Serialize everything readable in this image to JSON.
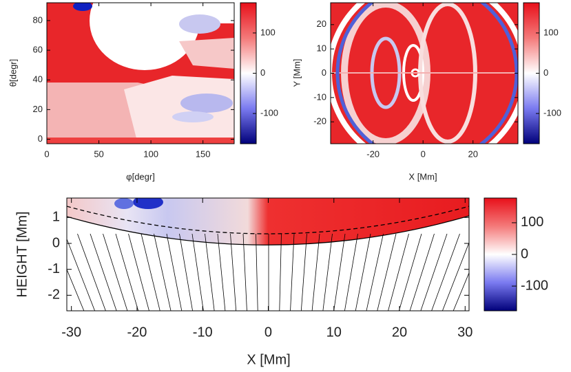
{
  "chart_data": [
    {
      "type": "heatmap",
      "xlabel": "φ[degr]",
      "ylabel": "θ[degr]",
      "xlim": [
        0,
        180
      ],
      "xticks": [
        0,
        50,
        100,
        150
      ],
      "ylim": [
        -3,
        92
      ],
      "yticks": [
        0,
        20,
        40,
        60,
        80
      ],
      "colorbar": {
        "lim": [
          -175,
          175
        ],
        "ticks": [
          100,
          0,
          -100
        ]
      }
    },
    {
      "type": "heatmap",
      "xlabel": "X [Mm]",
      "ylabel": "Y [Mm]",
      "xlim": [
        -37,
        38
      ],
      "xticks": [
        -20,
        0,
        20
      ],
      "ylim": [
        -29,
        29
      ],
      "yticks": [
        20,
        10,
        0,
        -10,
        -20
      ],
      "colorbar": {
        "lim": [
          -175,
          175
        ],
        "ticks": [
          100,
          0,
          -100
        ]
      }
    },
    {
      "type": "heatmap",
      "xlabel": "X [Mm]",
      "ylabel": "HEIGHT [Mm]",
      "xlim": [
        -30.7,
        30.6
      ],
      "xticks": [
        -30,
        -20,
        -10,
        0,
        10,
        20,
        30
      ],
      "ylim": [
        -2.6,
        1.75
      ],
      "yticks": [
        1,
        0,
        -1,
        -2
      ],
      "colorbar": {
        "lim": [
          -178,
          178
        ],
        "ticks": [
          100,
          0,
          -100
        ]
      }
    }
  ]
}
